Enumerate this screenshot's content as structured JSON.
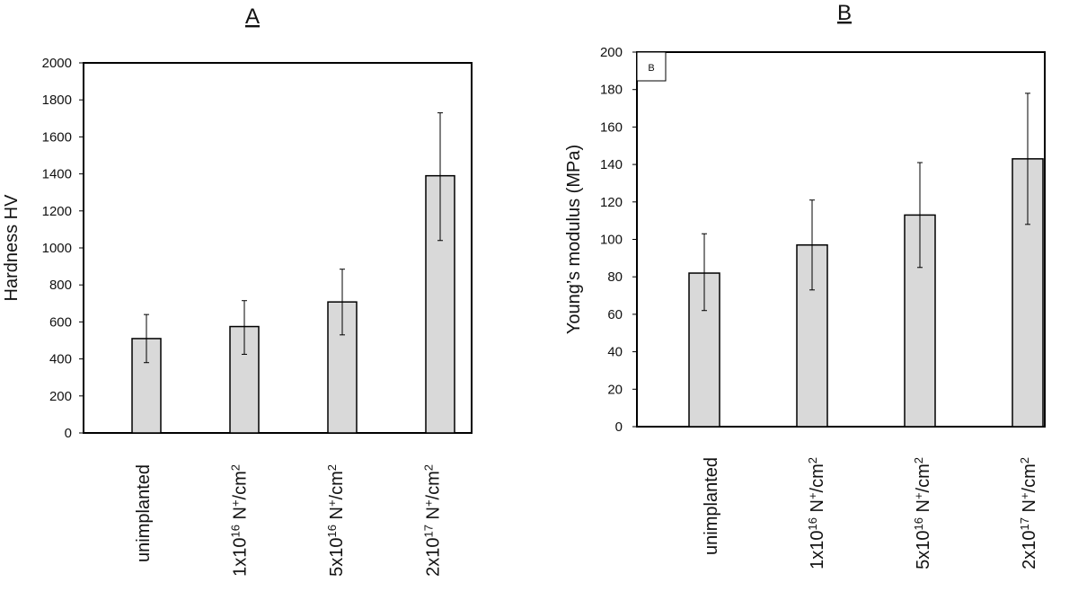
{
  "chart_data": [
    {
      "type": "bar",
      "title": "A",
      "ylabel": "Hardness HV",
      "ylim": [
        0,
        2000
      ],
      "yticks": [
        0,
        200,
        400,
        600,
        800,
        1000,
        1200,
        1400,
        1600,
        1800,
        2000
      ],
      "categories": [
        {
          "parts": [
            {
              "t": "unimplanted"
            }
          ]
        },
        {
          "parts": [
            {
              "t": "1x10"
            },
            {
              "t": "16",
              "sup": true
            },
            {
              "t": " N"
            },
            {
              "t": "+",
              "sup": true
            },
            {
              "t": "/cm"
            },
            {
              "t": "2",
              "sup": true
            }
          ]
        },
        {
          "parts": [
            {
              "t": "5x10"
            },
            {
              "t": "16",
              "sup": true
            },
            {
              "t": " N"
            },
            {
              "t": "+",
              "sup": true
            },
            {
              "t": "/cm"
            },
            {
              "t": "2",
              "sup": true
            }
          ]
        },
        {
          "parts": [
            {
              "t": "2x10"
            },
            {
              "t": "17",
              "sup": true
            },
            {
              "t": " N"
            },
            {
              "t": "+",
              "sup": true
            },
            {
              "t": "/cm"
            },
            {
              "t": "2",
              "sup": true
            }
          ]
        }
      ],
      "values": [
        510,
        575,
        708,
        1390
      ],
      "error_low": [
        380,
        425,
        530,
        1040
      ],
      "error_high": [
        640,
        715,
        885,
        1730
      ],
      "bar_color": "#d9d9d9",
      "grid": false
    },
    {
      "type": "bar",
      "title": "B",
      "inset_label": "B",
      "ylabel": "Young’s modulus (MPa)",
      "ylim": [
        0,
        200
      ],
      "yticks": [
        0,
        20,
        40,
        60,
        80,
        100,
        120,
        140,
        160,
        180,
        200
      ],
      "categories": [
        {
          "parts": [
            {
              "t": "unimplanted"
            }
          ]
        },
        {
          "parts": [
            {
              "t": "1x10"
            },
            {
              "t": "16",
              "sup": true
            },
            {
              "t": " N"
            },
            {
              "t": "+",
              "sup": true
            },
            {
              "t": "/cm"
            },
            {
              "t": "2",
              "sup": true
            }
          ]
        },
        {
          "parts": [
            {
              "t": "5x10"
            },
            {
              "t": "16",
              "sup": true
            },
            {
              "t": " N"
            },
            {
              "t": "+",
              "sup": true
            },
            {
              "t": "/cm"
            },
            {
              "t": "2",
              "sup": true
            }
          ]
        },
        {
          "parts": [
            {
              "t": "2x10"
            },
            {
              "t": "17",
              "sup": true
            },
            {
              "t": " N"
            },
            {
              "t": "+",
              "sup": true
            },
            {
              "t": "/cm"
            },
            {
              "t": "2",
              "sup": true
            }
          ]
        }
      ],
      "values": [
        82,
        97,
        113,
        143
      ],
      "error_low": [
        62,
        73,
        85,
        108
      ],
      "error_high": [
        103,
        121,
        141,
        178
      ],
      "bar_color": "#d9d9d9",
      "grid": false
    }
  ]
}
